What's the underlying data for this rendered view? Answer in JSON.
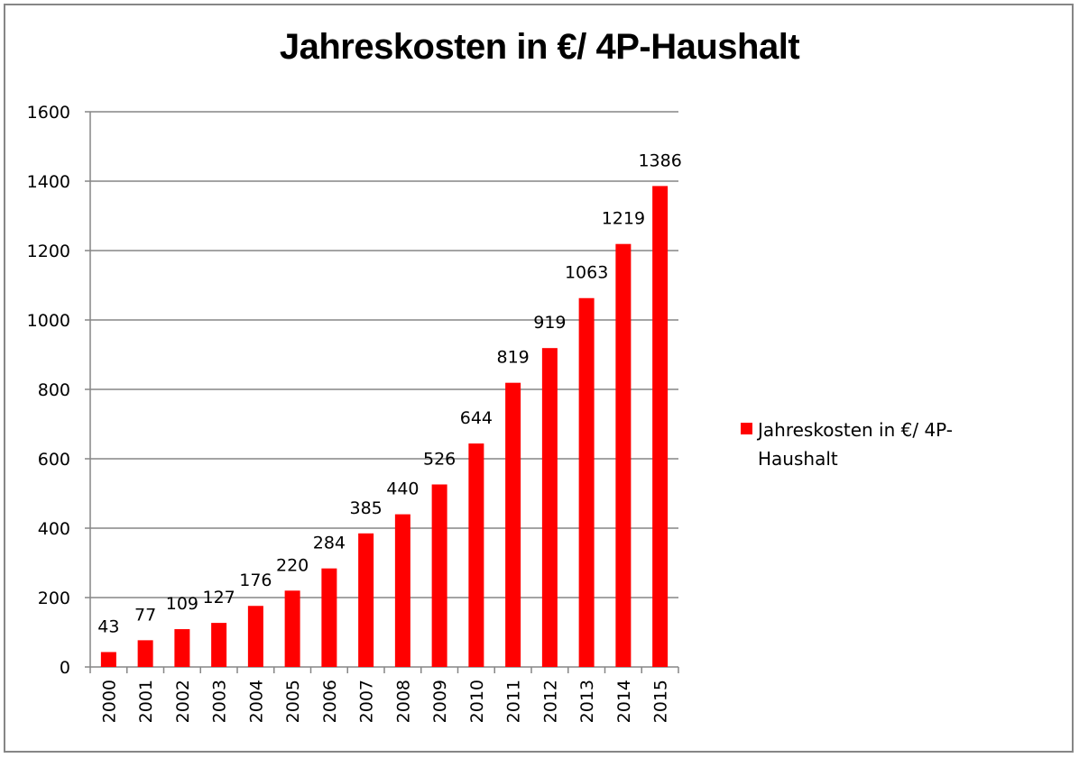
{
  "chart_data": {
    "type": "bar",
    "title": "Jahreskosten in €/ 4P-Haushalt",
    "categories": [
      "2000",
      "2001",
      "2002",
      "2003",
      "2004",
      "2005",
      "2006",
      "2007",
      "2008",
      "2009",
      "2010",
      "2011",
      "2012",
      "2013",
      "2014",
      "2015"
    ],
    "series": [
      {
        "name": "Jahreskosten in €/ 4P-Haushalt",
        "values": [
          43,
          77,
          109,
          127,
          176,
          220,
          284,
          385,
          440,
          526,
          644,
          819,
          919,
          1063,
          1219,
          1386
        ],
        "color": "#ff0000"
      }
    ],
    "ylim": [
      0,
      1600
    ],
    "yticks": [
      0,
      200,
      400,
      600,
      800,
      1000,
      1200,
      1400,
      1600
    ],
    "grid": true,
    "legend": "right",
    "xlabel": "",
    "ylabel": ""
  },
  "colors": {
    "bar": "#ff0000",
    "grid": "#868686",
    "axis": "#868686"
  }
}
